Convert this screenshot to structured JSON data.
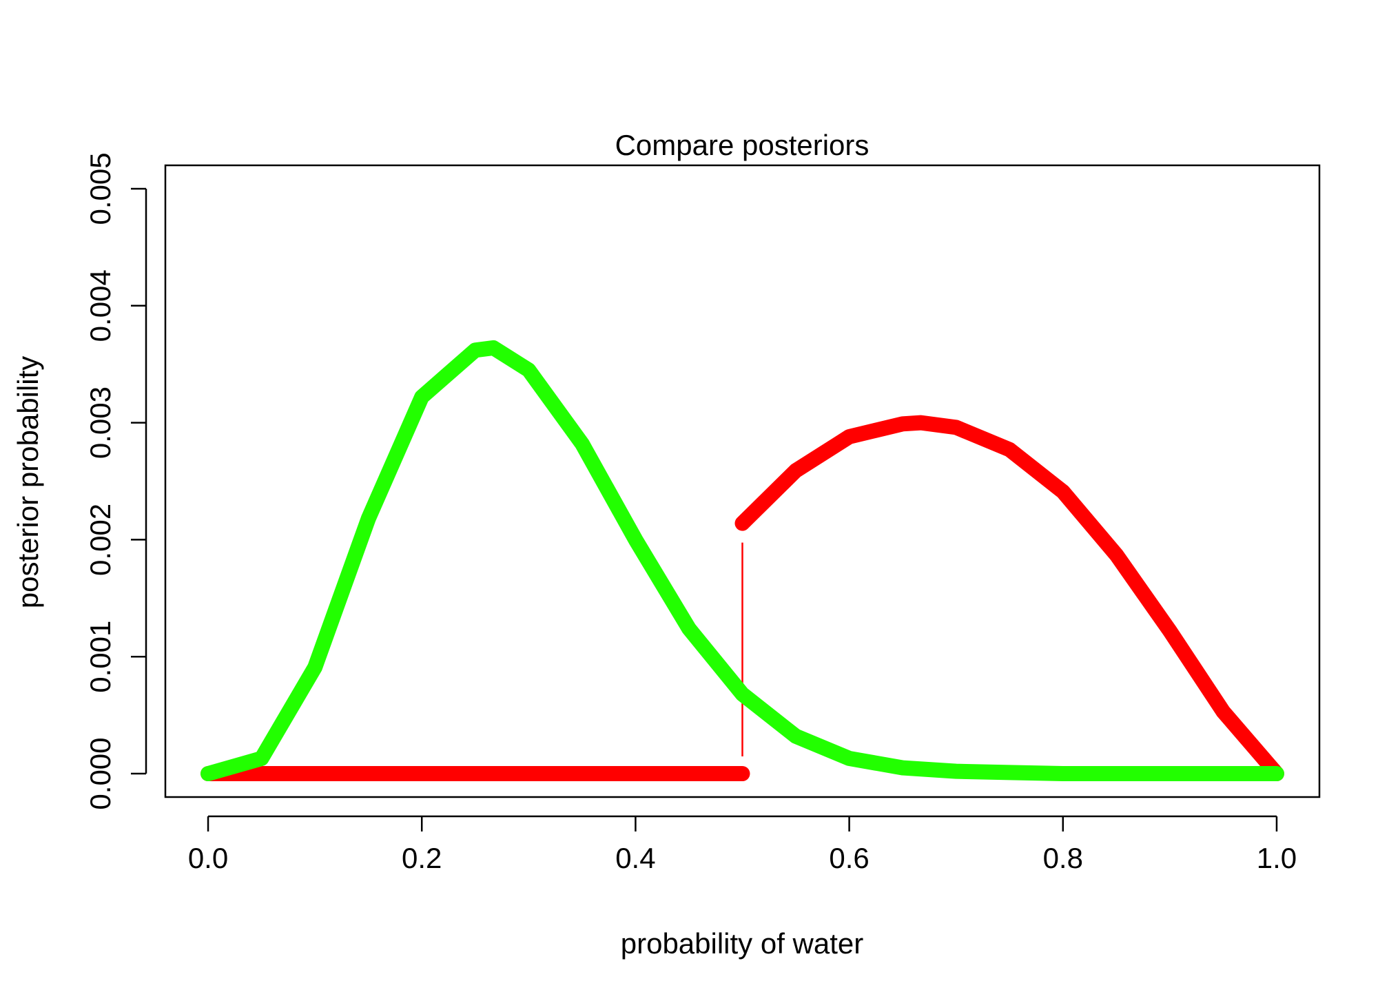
{
  "chart_data": {
    "type": "line",
    "title": "Compare posteriors",
    "xlabel": "probability of water",
    "ylabel": "posterior probability",
    "xlim": [
      -0.04,
      1.04
    ],
    "ylim": [
      -0.0002,
      0.0052
    ],
    "x_ticks": [
      0.0,
      0.2,
      0.4,
      0.6,
      0.8,
      1.0
    ],
    "x_tick_labels": [
      "0.0",
      "0.2",
      "0.4",
      "0.6",
      "0.8",
      "1.0"
    ],
    "y_ticks": [
      0.0,
      0.001,
      0.002,
      0.003,
      0.004,
      0.005
    ],
    "y_tick_labels": [
      "0.000",
      "0.001",
      "0.002",
      "0.003",
      "0.004",
      "0.005"
    ],
    "grid": false,
    "legend": "none",
    "series": [
      {
        "color": "#ff0000",
        "x": [
          0.0,
          0.05,
          0.1,
          0.15,
          0.2,
          0.25,
          0.3,
          0.35,
          0.4,
          0.45,
          0.5,
          0.5,
          0.55,
          0.6,
          0.65,
          0.667,
          0.7,
          0.75,
          0.8,
          0.85,
          0.9,
          0.95,
          1.0
        ],
        "y": [
          0.0,
          0.0,
          0.0,
          0.0,
          0.0,
          0.0,
          0.0,
          0.0,
          0.0,
          0.0,
          0.0,
          0.00214,
          0.00259,
          0.00288,
          0.00299,
          0.003,
          0.00296,
          0.00277,
          0.00241,
          0.00187,
          0.00122,
          0.00053,
          0.0
        ]
      },
      {
        "color": "#22ff00",
        "x": [
          0.0,
          0.05,
          0.1,
          0.15,
          0.2,
          0.25,
          0.267,
          0.3,
          0.35,
          0.4,
          0.45,
          0.5,
          0.55,
          0.6,
          0.65,
          0.7,
          0.75,
          0.8,
          0.85,
          0.9,
          0.95,
          1.0
        ],
        "y": [
          0.0,
          0.00013,
          0.00091,
          0.00218,
          0.00322,
          0.00362,
          0.00364,
          0.00345,
          0.00282,
          0.002,
          0.00124,
          0.00068,
          0.00032,
          0.00013,
          5e-05,
          2e-05,
          1e-05,
          0.0,
          0.0,
          0.0,
          0.0,
          0.0
        ]
      }
    ]
  }
}
